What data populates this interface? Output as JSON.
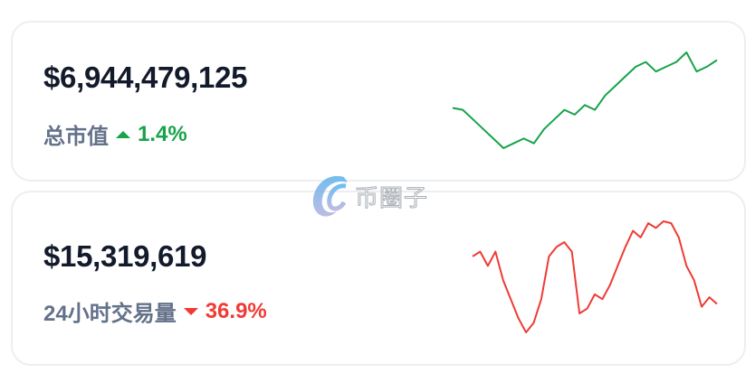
{
  "market_cap": {
    "value": "$6,944,479,125",
    "label": "总市值",
    "change": "1.4%",
    "direction": "up",
    "color": "#16a34a",
    "sparkline": [
      82,
      80,
      70,
      60,
      50,
      40,
      45,
      50,
      45,
      60,
      70,
      80,
      75,
      85,
      80,
      95,
      105,
      115,
      125,
      130,
      120,
      125,
      130,
      140,
      120,
      125,
      132
    ]
  },
  "volume_24h": {
    "value": "$15,319,619",
    "label": "24小时交易量",
    "change": "36.9%",
    "direction": "down",
    "color": "#ef3b35",
    "sparkline": [
      115,
      120,
      105,
      120,
      90,
      70,
      50,
      35,
      45,
      70,
      115,
      125,
      130,
      120,
      55,
      60,
      75,
      70,
      85,
      105,
      125,
      142,
      135,
      150,
      145,
      152,
      150,
      135,
      105,
      90,
      62,
      72,
      65
    ]
  },
  "watermark": {
    "text": "币圈子",
    "icon": "logo-e-icon"
  }
}
